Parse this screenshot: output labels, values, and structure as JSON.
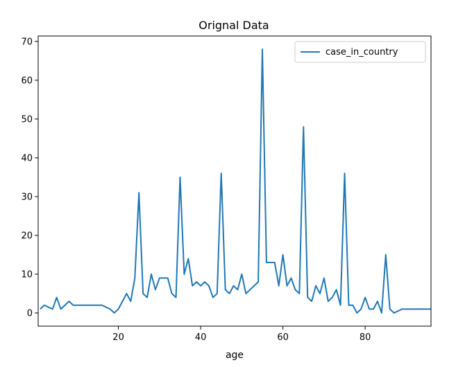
{
  "chart_data": {
    "type": "line",
    "title": "Orignal Data",
    "xlabel": "age",
    "ylabel": "",
    "xlim": [
      0.5,
      96
    ],
    "ylim": [
      -3.4,
      71.4
    ],
    "xticks": [
      20,
      40,
      60,
      80
    ],
    "yticks": [
      0,
      10,
      20,
      30,
      40,
      50,
      60,
      70
    ],
    "grid": false,
    "legend_position": "top-right",
    "series": [
      {
        "name": "case_in_country",
        "color": "#1f77b4",
        "x": [
          1,
          2,
          3,
          4,
          5,
          6,
          7,
          8,
          9,
          10,
          16,
          17,
          18,
          19,
          20,
          21,
          22,
          23,
          24,
          25,
          26,
          27,
          28,
          29,
          30,
          31,
          32,
          33,
          34,
          35,
          36,
          37,
          38,
          39,
          40,
          41,
          42,
          43,
          44,
          45,
          46,
          47,
          48,
          49,
          50,
          51,
          52,
          53,
          54,
          55,
          56,
          57,
          58,
          59,
          60,
          61,
          62,
          63,
          64,
          65,
          66,
          67,
          68,
          69,
          70,
          71,
          72,
          73,
          74,
          75,
          76,
          77,
          78,
          79,
          80,
          81,
          82,
          83,
          84,
          85,
          86,
          87,
          88,
          89,
          96
        ],
        "y": [
          1,
          2,
          1.5,
          1,
          4,
          1,
          2,
          3,
          2,
          2,
          2,
          1.5,
          1,
          0,
          1,
          3,
          5,
          3,
          9,
          31,
          5,
          4,
          10,
          6,
          9,
          9,
          9,
          5,
          4,
          35,
          10,
          14,
          7,
          8,
          7,
          8,
          7,
          4,
          5,
          36,
          6,
          5,
          7,
          6,
          10,
          5,
          6,
          7,
          8,
          68,
          13,
          13,
          13,
          7,
          15,
          7,
          9,
          6,
          5,
          48,
          4,
          3,
          7,
          5,
          9,
          3,
          4,
          6,
          2,
          36,
          2,
          2,
          0,
          1,
          4,
          1,
          1,
          3,
          0,
          15,
          1,
          0,
          0.5,
          1,
          1
        ]
      }
    ]
  }
}
